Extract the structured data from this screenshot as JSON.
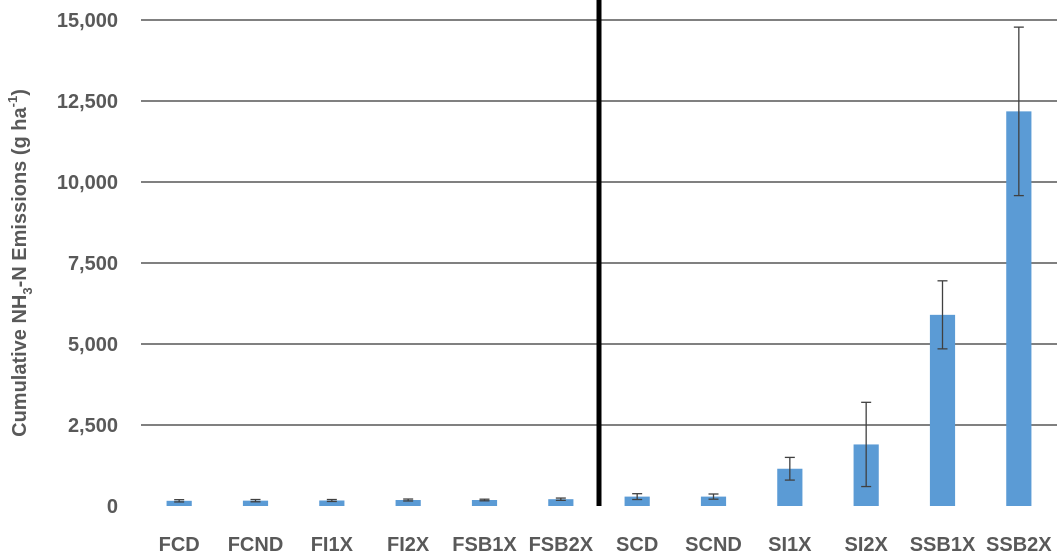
{
  "chart_data": {
    "type": "bar",
    "title": "",
    "xlabel": "",
    "ylabel": {
      "prefix": "Cumulative NH",
      "sub": "3",
      "mid": "-N Emissions (g ha",
      "sup": "-1",
      "suffix": ")"
    },
    "ylim": [
      0,
      15000
    ],
    "yticks": [
      0,
      2500,
      5000,
      7500,
      10000,
      12500,
      15000
    ],
    "ytick_labels": [
      "0",
      "2,500",
      "5,000",
      "7,500",
      "10,000",
      "12,500",
      "15,000"
    ],
    "categories": [
      "FCD",
      "FCND",
      "FI1X",
      "FI2X",
      "FSB1X",
      "FSB2X",
      "SCD",
      "SCND",
      "SI1X",
      "SI2X",
      "SSB1X",
      "SSB2X"
    ],
    "values": [
      160,
      165,
      170,
      185,
      185,
      210,
      290,
      290,
      1150,
      1900,
      5900,
      12180
    ],
    "error": [
      35,
      35,
      30,
      30,
      25,
      35,
      90,
      80,
      350,
      1300,
      1050,
      2600
    ],
    "divider_after_category": "FSB2X",
    "grid": true,
    "legend": "none",
    "colors": {
      "bar": "#5b9bd5",
      "error": "#404040",
      "grid": "#000000",
      "divider": "#000000",
      "text": "#595959"
    }
  }
}
